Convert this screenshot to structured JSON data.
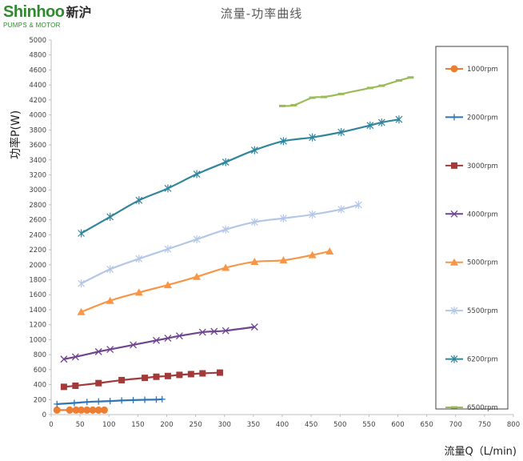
{
  "logo": {
    "brand": "Shinhoo",
    "brand_cn": "新沪",
    "tagline": "PUMPS & MOTOR"
  },
  "colors": {
    "1000rpm": "#ed7d31",
    "2000rpm": "#2e75b6",
    "3000rpm": "#a33a3a",
    "4000rpm": "#70448f",
    "5000rpm": "#f79646",
    "5500rpm": "#b4c7e7",
    "6200rpm": "#31859c",
    "6500rpm": "#9bbb59"
  },
  "chart_data": {
    "type": "line",
    "title": "流量-功率曲线",
    "xlabel": "流量Q（L/min)",
    "ylabel": "功率P(W)",
    "xlim": [
      0,
      800
    ],
    "ylim": [
      0,
      5000
    ],
    "xticks": [
      0,
      50,
      100,
      150,
      200,
      250,
      300,
      350,
      400,
      450,
      500,
      550,
      600,
      650,
      700,
      750,
      800
    ],
    "yticks": [
      0,
      200,
      400,
      600,
      800,
      1000,
      1200,
      1400,
      1600,
      1800,
      2000,
      2200,
      2400,
      2600,
      2800,
      3000,
      3200,
      3400,
      3600,
      3800,
      4000,
      4200,
      4400,
      4600,
      4800,
      5000
    ],
    "grid": false,
    "legend_position": "right",
    "series": [
      {
        "name": "1000rpm",
        "marker": "circle",
        "x": [
          10,
          32,
          43,
          52,
          62,
          72,
          82,
          92
        ],
        "y": [
          60,
          60,
          60,
          60,
          60,
          60,
          60,
          60
        ]
      },
      {
        "name": "2000rpm",
        "marker": "plus",
        "x": [
          10,
          40,
          62,
          82,
          102,
          122,
          142,
          162,
          182,
          192
        ],
        "y": [
          140,
          155,
          168,
          175,
          180,
          188,
          194,
          198,
          200,
          205
        ]
      },
      {
        "name": "3000rpm",
        "marker": "square",
        "x": [
          22,
          42,
          82,
          122,
          162,
          182,
          202,
          222,
          242,
          262,
          292
        ],
        "y": [
          370,
          385,
          420,
          460,
          490,
          505,
          515,
          530,
          540,
          550,
          560
        ]
      },
      {
        "name": "4000rpm",
        "marker": "x",
        "x": [
          22,
          42,
          82,
          102,
          142,
          182,
          202,
          222,
          262,
          282,
          302,
          352
        ],
        "y": [
          740,
          770,
          840,
          870,
          930,
          990,
          1020,
          1050,
          1100,
          1110,
          1120,
          1170
        ]
      },
      {
        "name": "5000rpm",
        "marker": "triangle",
        "x": [
          52,
          102,
          152,
          202,
          252,
          302,
          352,
          402,
          452,
          482
        ],
        "y": [
          1370,
          1520,
          1630,
          1730,
          1840,
          1960,
          2040,
          2060,
          2130,
          2180
        ]
      },
      {
        "name": "5500rpm",
        "marker": "star",
        "x": [
          52,
          102,
          152,
          202,
          252,
          302,
          352,
          402,
          452,
          502,
          532
        ],
        "y": [
          1750,
          1940,
          2080,
          2210,
          2340,
          2470,
          2570,
          2620,
          2670,
          2740,
          2800
        ]
      },
      {
        "name": "6200rpm",
        "marker": "star",
        "x": [
          52,
          102,
          152,
          202,
          252,
          302,
          352,
          402,
          452,
          502,
          552,
          572,
          602
        ],
        "y": [
          2420,
          2640,
          2860,
          3020,
          3210,
          3370,
          3530,
          3650,
          3700,
          3770,
          3860,
          3900,
          3940
        ]
      },
      {
        "name": "6500rpm",
        "marker": "dash",
        "x": [
          400,
          420,
          452,
          472,
          502,
          552,
          572,
          602,
          622
        ],
        "y": [
          4120,
          4130,
          4230,
          4240,
          4280,
          4360,
          4390,
          4460,
          4500
        ]
      }
    ]
  }
}
